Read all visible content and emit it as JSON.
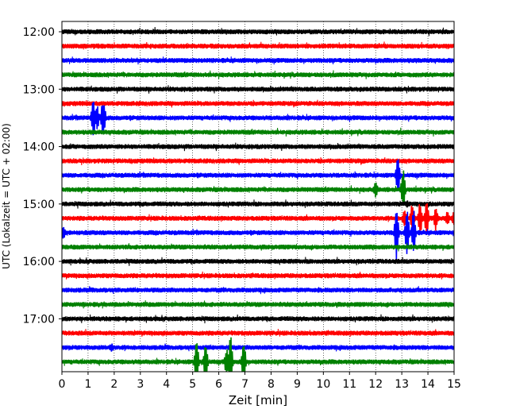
{
  "chart_data": {
    "type": "line",
    "subtype": "helicorder-seismogram",
    "title": "",
    "xlabel": "Zeit  [min]",
    "ylabel": "UTC (Lokalzeit = UTC + 02:00)",
    "xlim": [
      0,
      15
    ],
    "x_ticks": [
      0,
      1,
      2,
      3,
      4,
      5,
      6,
      7,
      8,
      9,
      10,
      11,
      12,
      13,
      14,
      15
    ],
    "y_time_range": [
      "12:00",
      "17:45"
    ],
    "y_tick_labels": [
      "12:00",
      "13:00",
      "14:00",
      "15:00",
      "16:00",
      "17:00"
    ],
    "trace_interval_min": 15,
    "grid": "vertical dotted at each minute",
    "color_cycle": [
      "#000000",
      "#ff0000",
      "#0000ff",
      "#008000"
    ],
    "traces": [
      {
        "start": "12:00",
        "color": "#000000",
        "events": []
      },
      {
        "start": "12:15",
        "color": "#ff0000",
        "events": []
      },
      {
        "start": "12:30",
        "color": "#0000ff",
        "events": []
      },
      {
        "start": "12:45",
        "color": "#008000",
        "events": []
      },
      {
        "start": "13:00",
        "color": "#000000",
        "events": []
      },
      {
        "start": "13:15",
        "color": "#ff0000",
        "events": []
      },
      {
        "start": "13:30",
        "color": "#0000ff",
        "events": [
          {
            "t_min": 1.2,
            "amp": 2.6
          },
          {
            "t_min": 1.35,
            "amp": 1.6
          },
          {
            "t_min": 1.55,
            "amp": 1.8
          },
          {
            "t_min": 1.6,
            "amp": 2.0
          }
        ]
      },
      {
        "start": "13:45",
        "color": "#008000",
        "events": []
      },
      {
        "start": "14:00",
        "color": "#000000",
        "events": []
      },
      {
        "start": "14:15",
        "color": "#ff0000",
        "events": []
      },
      {
        "start": "14:30",
        "color": "#0000ff",
        "events": [
          {
            "t_min": 12.85,
            "amp": 2.8
          }
        ]
      },
      {
        "start": "14:45",
        "color": "#008000",
        "events": [
          {
            "t_min": 12.0,
            "amp": 1.2
          },
          {
            "t_min": 13.05,
            "amp": 2.8
          }
        ]
      },
      {
        "start": "15:00",
        "color": "#000000",
        "events": [
          {
            "t_min": 13.2,
            "amp": 0.5
          }
        ]
      },
      {
        "start": "15:15",
        "color": "#ff0000",
        "events": [
          {
            "t_min": 13.1,
            "amp": 1.3
          },
          {
            "t_min": 13.4,
            "amp": 2.0
          },
          {
            "t_min": 13.7,
            "amp": 2.2
          },
          {
            "t_min": 13.95,
            "amp": 2.5
          },
          {
            "t_min": 14.3,
            "amp": 1.6
          },
          {
            "t_min": 14.75,
            "amp": 1.0
          },
          {
            "t_min": 15.0,
            "amp": 1.1
          }
        ]
      },
      {
        "start": "15:30",
        "color": "#0000ff",
        "events": [
          {
            "t_min": 0.05,
            "amp": 1.0
          },
          {
            "t_min": 12.8,
            "amp": 3.6
          },
          {
            "t_min": 13.2,
            "amp": 3.4
          },
          {
            "t_min": 13.45,
            "amp": 3.0
          }
        ]
      },
      {
        "start": "15:45",
        "color": "#008000",
        "events": []
      },
      {
        "start": "16:00",
        "color": "#000000",
        "events": []
      },
      {
        "start": "16:15",
        "color": "#ff0000",
        "events": []
      },
      {
        "start": "16:30",
        "color": "#0000ff",
        "events": []
      },
      {
        "start": "16:45",
        "color": "#008000",
        "events": []
      },
      {
        "start": "17:00",
        "color": "#000000",
        "events": []
      },
      {
        "start": "17:15",
        "color": "#ff0000",
        "events": []
      },
      {
        "start": "17:30",
        "color": "#0000ff",
        "events": [
          {
            "t_min": 1.9,
            "amp": 0.6
          }
        ]
      },
      {
        "start": "17:45",
        "color": "#008000",
        "events": [
          {
            "t_min": 5.15,
            "amp": 3.2
          },
          {
            "t_min": 5.5,
            "amp": 2.6
          },
          {
            "t_min": 6.3,
            "amp": 1.8
          },
          {
            "t_min": 6.45,
            "amp": 3.4
          },
          {
            "t_min": 6.95,
            "amp": 3.0
          }
        ]
      }
    ]
  }
}
